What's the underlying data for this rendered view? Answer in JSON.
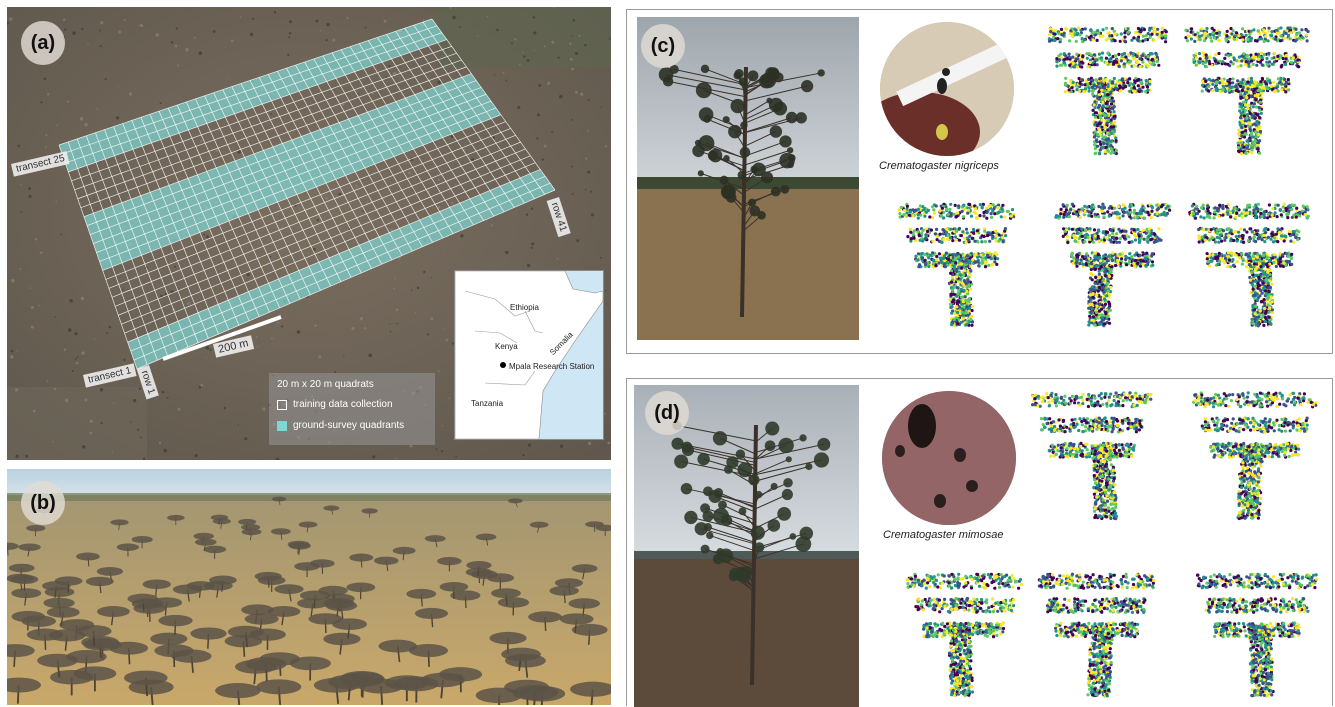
{
  "panels": {
    "a": {
      "letter": "(a)",
      "labels": {
        "transect_25": "transect 25",
        "transect_1": "transect 1",
        "row_41": "row 41",
        "row_1": "row 1",
        "scale": "200 m"
      },
      "legend": {
        "title": "20 m x 20 m quadrats",
        "items": [
          "training data collection",
          "ground-survey quadrants"
        ],
        "colors": [
          "#ffffff",
          "#7fd6d3"
        ]
      },
      "map": {
        "labels": [
          "Ethiopia",
          "Somalia",
          "Kenya",
          "Mpala Research Station",
          "Tanzania"
        ],
        "land_color": "#ffffff",
        "sea_color": "#cfe6f5"
      }
    },
    "b": {
      "letter": "(b)"
    },
    "c": {
      "letter": "(c)",
      "species": "Crematogaster nigriceps"
    },
    "d": {
      "letter": "(d)",
      "species": "Crematogaster mimosae"
    }
  },
  "colors": {
    "viridis": [
      "#440154",
      "#3b528b",
      "#21918c",
      "#5ec962",
      "#fde725"
    ]
  }
}
